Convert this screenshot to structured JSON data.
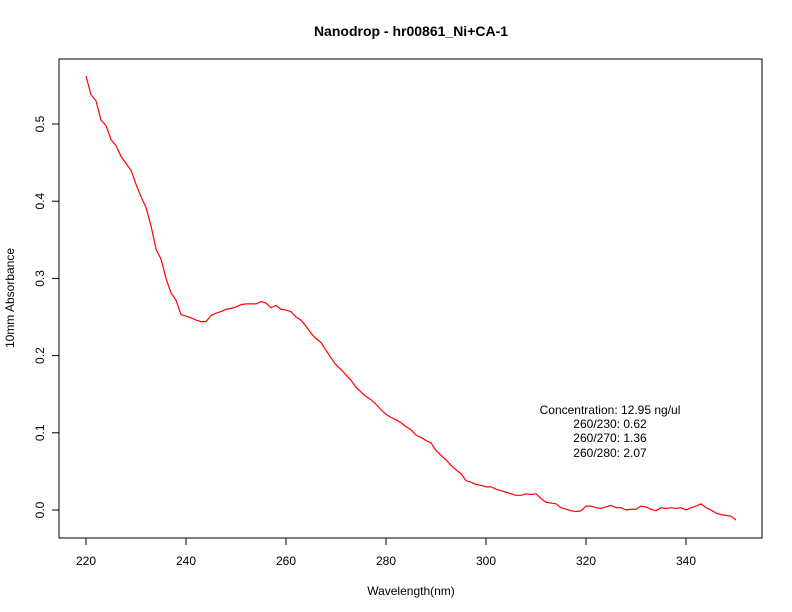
{
  "chart_data": {
    "type": "line",
    "title": "Nanodrop - hr00861_Ni+CA-1",
    "xlabel": "Wavelength(nm)",
    "ylabel": "10mm Absorbance",
    "xlim": [
      220,
      350
    ],
    "ylim": [
      -0.012,
      0.565
    ],
    "xticks": [
      "220",
      "240",
      "260",
      "280",
      "300",
      "320",
      "340"
    ],
    "yticks": [
      "0.0",
      "0.1",
      "0.2",
      "0.3",
      "0.4",
      "0.5"
    ],
    "grid": false,
    "line_color": "#ff0000",
    "series": [
      {
        "x": [
          220,
          221,
          222,
          223,
          224,
          225,
          226,
          227,
          228,
          229,
          230,
          231,
          232,
          233,
          234,
          235,
          236,
          237,
          238,
          239,
          240,
          241,
          242,
          243,
          244,
          245,
          246,
          247,
          248,
          249,
          250,
          251,
          252,
          253,
          254,
          255,
          256,
          257,
          258,
          259,
          260,
          261,
          262,
          263,
          264,
          265,
          266,
          267,
          268,
          269,
          270,
          271,
          272,
          273,
          274,
          275,
          276,
          277,
          278,
          279,
          280,
          281,
          282,
          283,
          284,
          285,
          286,
          287,
          288,
          289,
          290,
          291,
          292,
          293,
          294,
          295,
          296,
          297,
          298,
          299,
          300,
          301,
          302,
          303,
          304,
          305,
          306,
          307,
          308,
          309,
          310,
          311,
          312,
          313,
          314,
          315,
          316,
          317,
          318,
          319,
          320,
          321,
          322,
          323,
          324,
          325,
          326,
          327,
          328,
          329,
          330,
          331,
          332,
          333,
          334,
          335,
          336,
          337,
          338,
          339,
          340,
          341,
          342,
          343,
          344,
          345,
          346,
          347,
          348,
          349,
          350
        ],
        "y": [
          0.562,
          0.538,
          0.53,
          0.505,
          0.498,
          0.48,
          0.472,
          0.458,
          0.449,
          0.44,
          0.422,
          0.406,
          0.392,
          0.368,
          0.338,
          0.325,
          0.3,
          0.281,
          0.272,
          0.253,
          0.251,
          0.249,
          0.246,
          0.244,
          0.244,
          0.252,
          0.255,
          0.257,
          0.26,
          0.261,
          0.263,
          0.266,
          0.267,
          0.267,
          0.267,
          0.27,
          0.268,
          0.262,
          0.265,
          0.26,
          0.259,
          0.257,
          0.25,
          0.246,
          0.238,
          0.229,
          0.222,
          0.217,
          0.207,
          0.197,
          0.188,
          0.182,
          0.175,
          0.168,
          0.159,
          0.153,
          0.147,
          0.143,
          0.137,
          0.13,
          0.124,
          0.12,
          0.117,
          0.113,
          0.108,
          0.104,
          0.097,
          0.094,
          0.09,
          0.087,
          0.077,
          0.071,
          0.065,
          0.058,
          0.052,
          0.047,
          0.038,
          0.036,
          0.033,
          0.032,
          0.03,
          0.03,
          0.027,
          0.025,
          0.023,
          0.021,
          0.019,
          0.019,
          0.021,
          0.02,
          0.021,
          0.015,
          0.01,
          0.009,
          0.008,
          0.003,
          0.001,
          -0.001,
          -0.002,
          -0.001,
          0.005,
          0.005,
          0.003,
          0.002,
          0.004,
          0.006,
          0.003,
          0.003,
          0.0,
          0.001,
          0.001,
          0.005,
          0.004,
          0.001,
          -0.001,
          0.003,
          0.002,
          0.003,
          0.002,
          0.003,
          0.0,
          0.003,
          0.005,
          0.008,
          0.003,
          0.0,
          -0.004,
          -0.006,
          -0.007,
          -0.008,
          -0.013
        ]
      }
    ],
    "annotations": [
      "Concentration: 12.95 ng/ul",
      "260/230: 0.62",
      "260/270: 1.36",
      "260/280: 2.07"
    ]
  }
}
